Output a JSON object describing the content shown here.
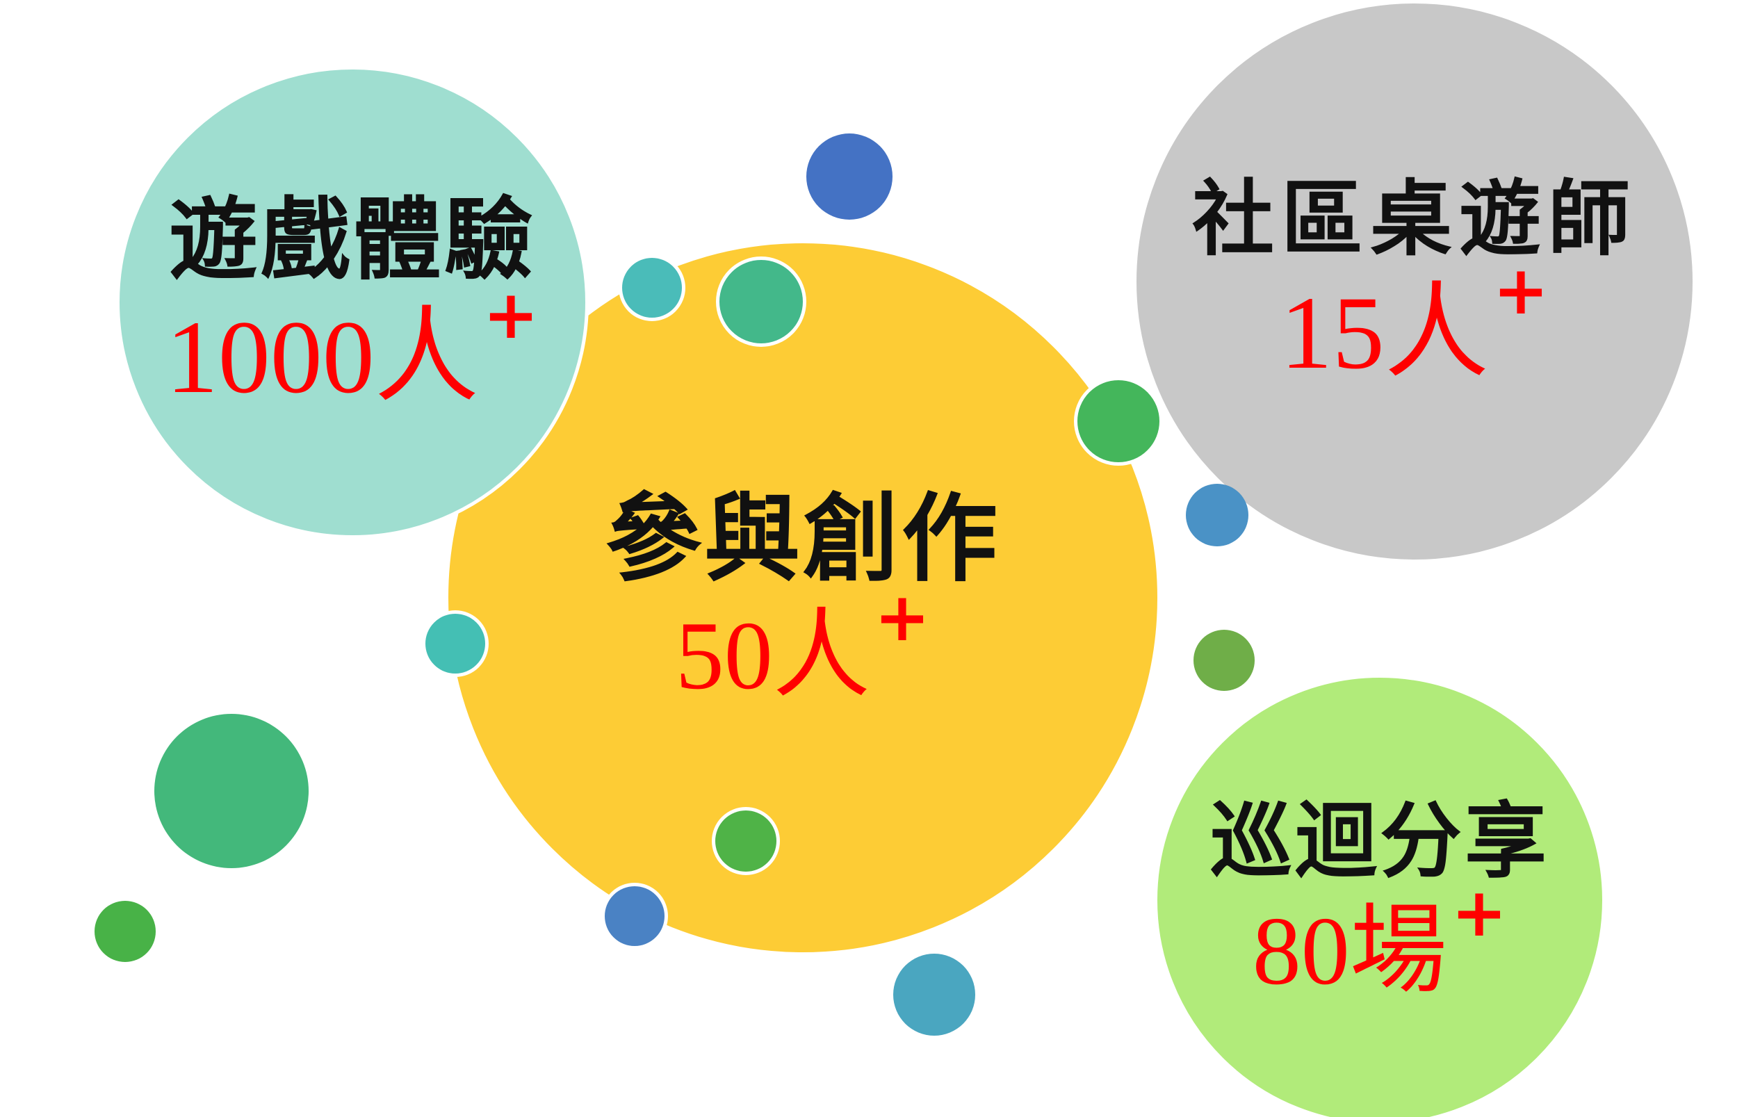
{
  "colors": {
    "background": "#ffffff",
    "title_text": "#111111",
    "value_text": "#ff0000",
    "teal_circle": "#9fded0",
    "yellow_circle": "#fdcc35",
    "gray_circle": "#c8c8c8",
    "lime_circle": "#b1eb7a"
  },
  "bubbles": {
    "game_experience": {
      "title": "遊戲體驗",
      "value": "1000人",
      "plus": "+"
    },
    "community_game_master": {
      "title": "社區桌遊師",
      "value": "15人",
      "plus": "+"
    },
    "creation_participation": {
      "title": "參與創作",
      "value": "50人",
      "plus": "+"
    },
    "tour_sharing": {
      "title": "巡迴分享",
      "value": "80場",
      "plus": "+"
    }
  }
}
